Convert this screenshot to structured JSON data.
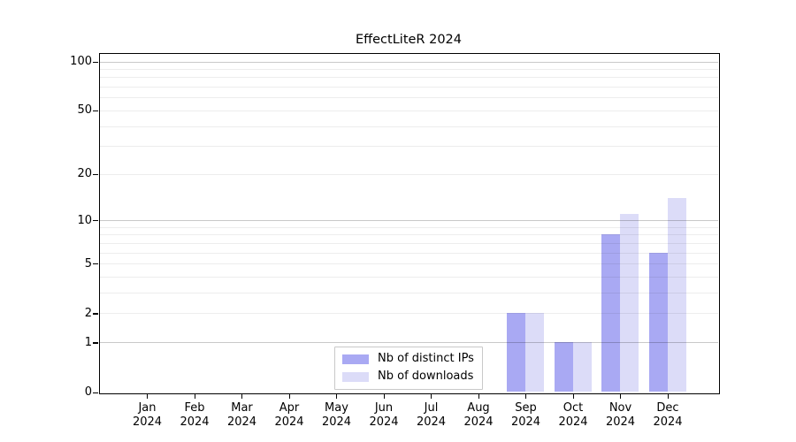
{
  "chart_data": {
    "type": "bar",
    "title": "EffectLiteR 2024",
    "x_categories": [
      {
        "month": "Jan",
        "year": "2024"
      },
      {
        "month": "Feb",
        "year": "2024"
      },
      {
        "month": "Mar",
        "year": "2024"
      },
      {
        "month": "Apr",
        "year": "2024"
      },
      {
        "month": "May",
        "year": "2024"
      },
      {
        "month": "Jun",
        "year": "2024"
      },
      {
        "month": "Jul",
        "year": "2024"
      },
      {
        "month": "Aug",
        "year": "2024"
      },
      {
        "month": "Sep",
        "year": "2024"
      },
      {
        "month": "Oct",
        "year": "2024"
      },
      {
        "month": "Nov",
        "year": "2024"
      },
      {
        "month": "Dec",
        "year": "2024"
      }
    ],
    "series": [
      {
        "name": "Nb of distinct IPs",
        "color": "#a9a9f3",
        "values": [
          0,
          0,
          0,
          0,
          0,
          0,
          0,
          0,
          2,
          1,
          8,
          6
        ]
      },
      {
        "name": "Nb of downloads",
        "color": "#dcdcf8",
        "values": [
          0,
          0,
          0,
          0,
          0,
          0,
          0,
          0,
          2,
          1,
          11,
          14
        ]
      }
    ],
    "y_axis": {
      "scale": "log1p",
      "tick_values": [
        100,
        50,
        20,
        10,
        5,
        2,
        1,
        0
      ],
      "tick_labels": [
        "100",
        "50",
        "20",
        "10",
        "5",
        "2",
        "1",
        "0"
      ],
      "major_gridlines": [
        1,
        10,
        100
      ],
      "minor_gridlines": [
        2,
        3,
        4,
        5,
        6,
        7,
        8,
        9,
        20,
        30,
        40,
        50,
        60,
        70,
        80,
        90
      ],
      "range": [
        0,
        112
      ]
    },
    "x_axis": {
      "label_year_shown": "2024"
    },
    "legend": {
      "position": "bottom-center"
    },
    "grid": "on",
    "colors": {
      "axis": "#000000",
      "major_grid": "rgba(0,0,0,0.21)",
      "minor_grid": "rgba(0,0,0,0.07)",
      "background": "#ffffff"
    }
  }
}
